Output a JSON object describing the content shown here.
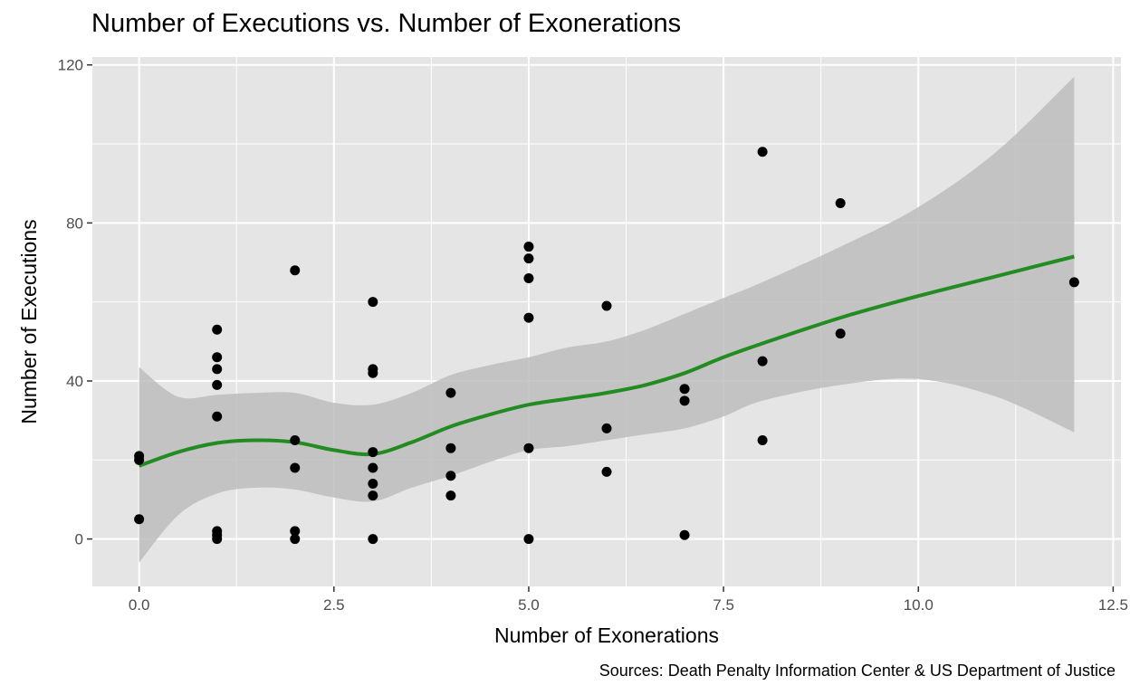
{
  "title": "Number of Executions vs. Number of Exonerations",
  "caption": "Sources: Death Penalty Information Center & US Department of Justice",
  "colors": {
    "panel_background": "#e5e5e5",
    "grid_line": "#ffffff",
    "point": "#000000",
    "smooth_line": "#228b22",
    "confidence_band": "#bdbdbd"
  },
  "chart_data": {
    "type": "scatter",
    "title": "Number of Executions vs. Number of Exonerations",
    "xlabel": "Number of Exonerations",
    "ylabel": "Number of Executions",
    "xlim": [
      -0.6,
      12.6
    ],
    "ylim": [
      -12,
      122
    ],
    "x_ticks": [
      0,
      2.5,
      5,
      7.5,
      10,
      12.5
    ],
    "x_tick_labels": [
      "0.0",
      "2.5",
      "5.0",
      "7.5",
      "10.0",
      "12.5"
    ],
    "y_ticks": [
      0,
      40,
      80,
      120
    ],
    "y_tick_labels": [
      "0",
      "40",
      "80",
      "120"
    ],
    "grid": true,
    "legend": "none",
    "points": [
      {
        "x": 0,
        "y": 21
      },
      {
        "x": 0,
        "y": 20
      },
      {
        "x": 0,
        "y": 5
      },
      {
        "x": 1,
        "y": 53
      },
      {
        "x": 1,
        "y": 46
      },
      {
        "x": 1,
        "y": 43
      },
      {
        "x": 1,
        "y": 39
      },
      {
        "x": 1,
        "y": 31
      },
      {
        "x": 1,
        "y": 2
      },
      {
        "x": 1,
        "y": 1
      },
      {
        "x": 1,
        "y": 0
      },
      {
        "x": 2,
        "y": 68
      },
      {
        "x": 2,
        "y": 25
      },
      {
        "x": 2,
        "y": 18
      },
      {
        "x": 2,
        "y": 2
      },
      {
        "x": 2,
        "y": 0
      },
      {
        "x": 3,
        "y": 60
      },
      {
        "x": 3,
        "y": 43
      },
      {
        "x": 3,
        "y": 42
      },
      {
        "x": 3,
        "y": 22
      },
      {
        "x": 3,
        "y": 18
      },
      {
        "x": 3,
        "y": 14
      },
      {
        "x": 3,
        "y": 11
      },
      {
        "x": 3,
        "y": 0
      },
      {
        "x": 4,
        "y": 37
      },
      {
        "x": 4,
        "y": 23
      },
      {
        "x": 4,
        "y": 16
      },
      {
        "x": 4,
        "y": 11
      },
      {
        "x": 5,
        "y": 74
      },
      {
        "x": 5,
        "y": 71
      },
      {
        "x": 5,
        "y": 66
      },
      {
        "x": 5,
        "y": 56
      },
      {
        "x": 5,
        "y": 23
      },
      {
        "x": 5,
        "y": 0
      },
      {
        "x": 6,
        "y": 59
      },
      {
        "x": 6,
        "y": 28
      },
      {
        "x": 6,
        "y": 17
      },
      {
        "x": 7,
        "y": 38
      },
      {
        "x": 7,
        "y": 35
      },
      {
        "x": 7,
        "y": 1
      },
      {
        "x": 8,
        "y": 98
      },
      {
        "x": 8,
        "y": 45
      },
      {
        "x": 8,
        "y": 25
      },
      {
        "x": 9,
        "y": 85
      },
      {
        "x": 9,
        "y": 52
      },
      {
        "x": 12,
        "y": 65
      }
    ],
    "smooth": [
      {
        "x": 0,
        "y": 18.5
      },
      {
        "x": 0.5,
        "y": 22
      },
      {
        "x": 1,
        "y": 24.3
      },
      {
        "x": 1.5,
        "y": 25
      },
      {
        "x": 2,
        "y": 24.5
      },
      {
        "x": 2.5,
        "y": 22.5
      },
      {
        "x": 3,
        "y": 21.5
      },
      {
        "x": 3.5,
        "y": 24.5
      },
      {
        "x": 4,
        "y": 28.5
      },
      {
        "x": 4.5,
        "y": 31.5
      },
      {
        "x": 5,
        "y": 34
      },
      {
        "x": 5.5,
        "y": 35.5
      },
      {
        "x": 6,
        "y": 37
      },
      {
        "x": 6.5,
        "y": 39
      },
      {
        "x": 7,
        "y": 42
      },
      {
        "x": 7.5,
        "y": 46
      },
      {
        "x": 8,
        "y": 49.5
      },
      {
        "x": 9,
        "y": 56
      },
      {
        "x": 10,
        "y": 61.5
      },
      {
        "x": 11,
        "y": 66.5
      },
      {
        "x": 12,
        "y": 71.5
      }
    ],
    "band_upper": [
      {
        "x": 0,
        "y": 43.5
      },
      {
        "x": 0.5,
        "y": 36
      },
      {
        "x": 1,
        "y": 36.5
      },
      {
        "x": 1.5,
        "y": 37
      },
      {
        "x": 2,
        "y": 37
      },
      {
        "x": 2.5,
        "y": 34.5
      },
      {
        "x": 3,
        "y": 34
      },
      {
        "x": 3.5,
        "y": 37
      },
      {
        "x": 4,
        "y": 41.5
      },
      {
        "x": 4.5,
        "y": 44
      },
      {
        "x": 5,
        "y": 46
      },
      {
        "x": 5.5,
        "y": 48.5
      },
      {
        "x": 6,
        "y": 50
      },
      {
        "x": 6.5,
        "y": 53
      },
      {
        "x": 7,
        "y": 57
      },
      {
        "x": 7.5,
        "y": 61
      },
      {
        "x": 8,
        "y": 65
      },
      {
        "x": 9,
        "y": 74
      },
      {
        "x": 10,
        "y": 84
      },
      {
        "x": 11,
        "y": 98
      },
      {
        "x": 12,
        "y": 117
      }
    ],
    "band_lower": [
      {
        "x": 0,
        "y": -6
      },
      {
        "x": 0.5,
        "y": 6
      },
      {
        "x": 1,
        "y": 11.5
      },
      {
        "x": 1.5,
        "y": 13
      },
      {
        "x": 2,
        "y": 12.5
      },
      {
        "x": 2.5,
        "y": 10.5
      },
      {
        "x": 3,
        "y": 9.5
      },
      {
        "x": 3.5,
        "y": 13
      },
      {
        "x": 4,
        "y": 16
      },
      {
        "x": 4.5,
        "y": 19.5
      },
      {
        "x": 5,
        "y": 22.5
      },
      {
        "x": 5.5,
        "y": 23.5
      },
      {
        "x": 6,
        "y": 25
      },
      {
        "x": 6.5,
        "y": 26.5
      },
      {
        "x": 7,
        "y": 28
      },
      {
        "x": 7.5,
        "y": 31
      },
      {
        "x": 8,
        "y": 35
      },
      {
        "x": 9,
        "y": 39
      },
      {
        "x": 10,
        "y": 40.5
      },
      {
        "x": 11,
        "y": 36
      },
      {
        "x": 12,
        "y": 27
      }
    ]
  }
}
